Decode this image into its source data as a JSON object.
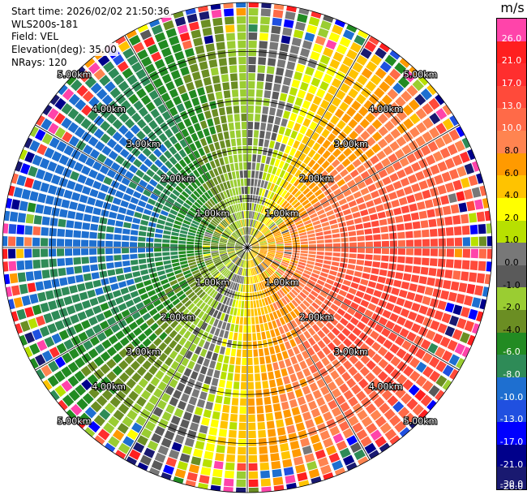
{
  "header": {
    "start_time": "Start time: 2026/02/02 21:50:36",
    "instrument": "WLS200s-181",
    "field": "Field: VEL",
    "elevation": "Elevation(deg): 35.00",
    "nrays": "NRays: 120"
  },
  "chart_data": {
    "type": "heatmap",
    "subtype": "polar-ppi",
    "field": "VEL",
    "nrays": 120,
    "max_range_km": 5.0,
    "range_ring_labels": [
      "1.00km",
      "2.00km",
      "3.00km",
      "4.00km",
      "5.00km"
    ],
    "range_rings_km": [
      1,
      2,
      3,
      4,
      5
    ],
    "spokes_deg": [
      0,
      30,
      60,
      90,
      120,
      150,
      180,
      210,
      240,
      270,
      300,
      330
    ],
    "colorbar": {
      "unit": "m/s",
      "labels": [
        "26.0",
        "21.0",
        "17.0",
        "13.0",
        "10.0",
        "8.0",
        "6.0",
        "4.0",
        "2.0",
        "1.0",
        "0.0",
        "-1.0",
        "-2.0",
        "-4.0",
        "-6.0",
        "-8.0",
        "-10.0",
        "-13.0",
        "-17.0",
        "-21.0",
        "-26.0",
        "-30.0"
      ],
      "colors": [
        "#ff44aa",
        "#ff1f1f",
        "#ff2e2e",
        "#ff4a3a",
        "#ff6a48",
        "#ff8450",
        "#ff9a00",
        "#ffc300",
        "#ffff00",
        "#b8e000",
        "#787878",
        "#5a5a5a",
        "#9acd32",
        "#6b8e23",
        "#228b22",
        "#2e8b57",
        "#1e6fd0",
        "#2050e0",
        "#0000ff",
        "#00008b",
        "#191970"
      ]
    },
    "pattern": {
      "zero_velocity_azimuth_deg": [
        15,
        195
      ],
      "positive_toward_azimuth_deg": 105,
      "peak_velocity_ms": 11.0,
      "noise_beyond_km": 4.3
    }
  }
}
